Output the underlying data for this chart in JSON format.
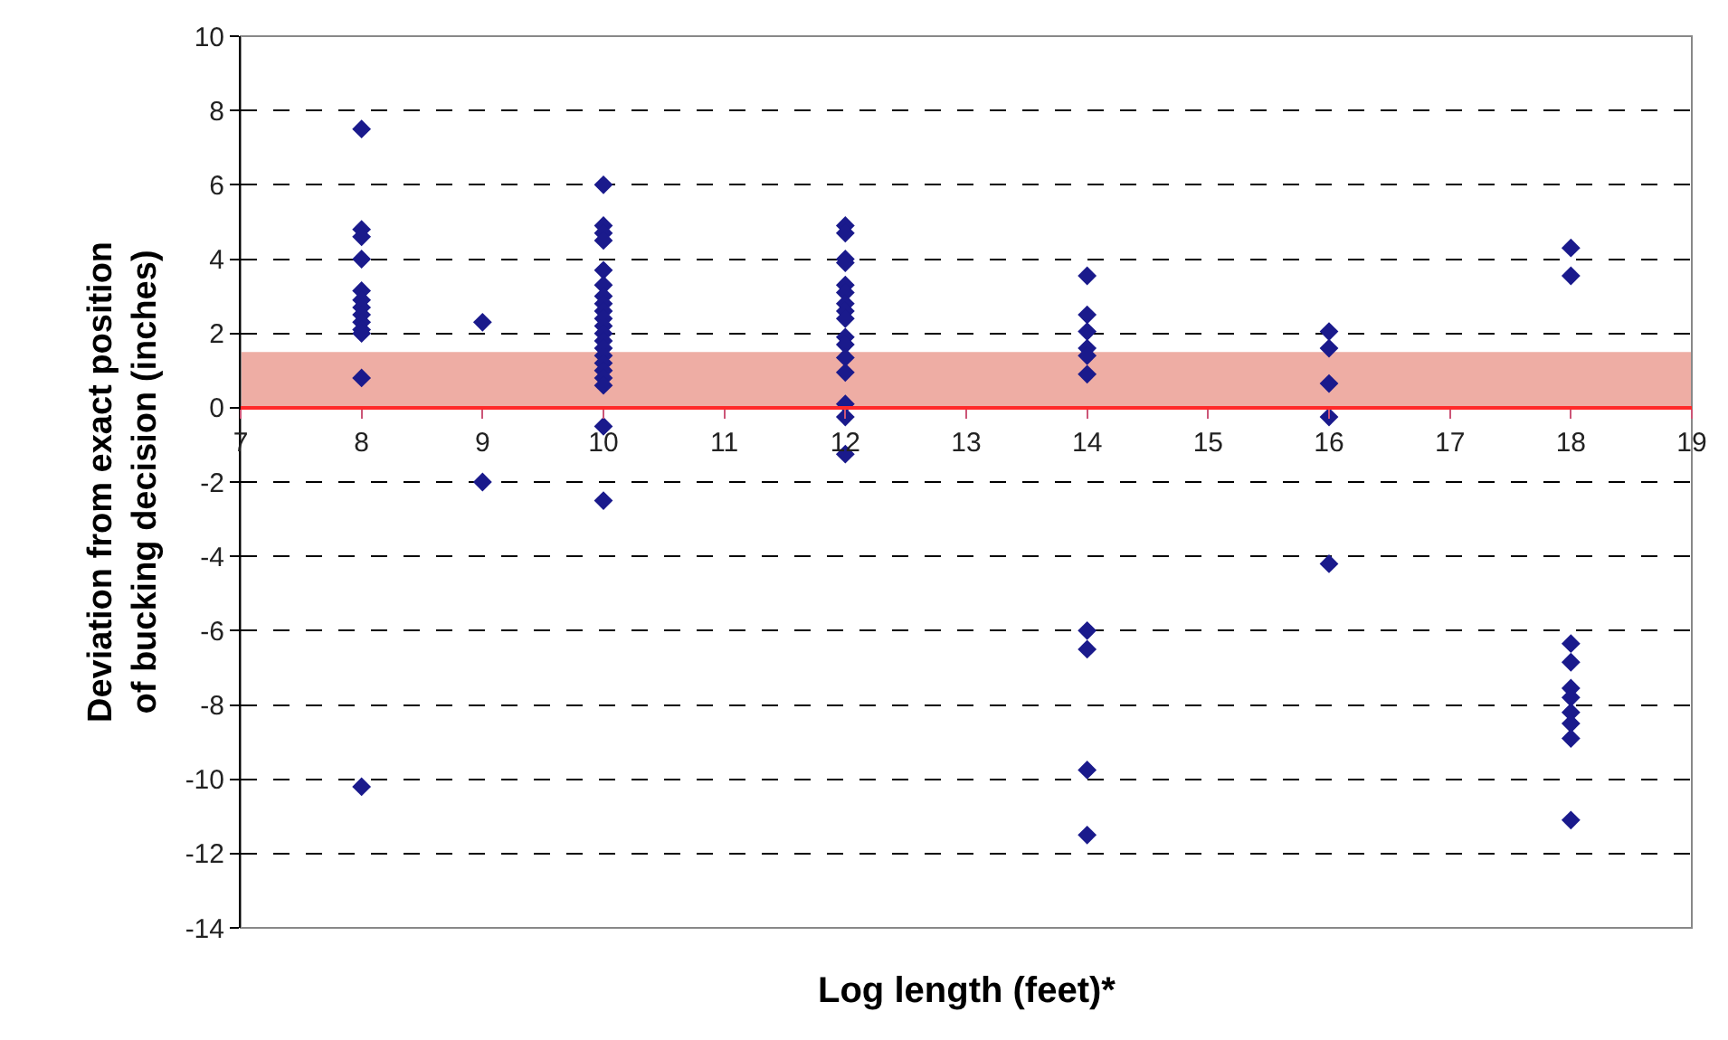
{
  "chart_data": {
    "type": "scatter",
    "xlabel": "Log length (feet)*",
    "ylabel": "Deviation from exact position of bucking decision (inches)",
    "xlim": [
      7,
      19
    ],
    "xticks": [
      7,
      8,
      9,
      10,
      11,
      12,
      13,
      14,
      15,
      16,
      17,
      18,
      19
    ],
    "ylim": [
      -14,
      10
    ],
    "yticks": [
      -14,
      -12,
      -10,
      -8,
      -6,
      -4,
      -2,
      0,
      2,
      4,
      6,
      8,
      10
    ],
    "grid": "y",
    "marker": "diamond",
    "bands": [
      {
        "axis": "y",
        "from": 0,
        "to": 1.5,
        "color": "#e06a5a"
      }
    ],
    "series": [
      {
        "color": "#1a1a8c",
        "x": [
          8,
          8,
          8,
          8,
          8,
          8,
          8,
          8,
          8,
          8,
          8,
          8,
          8,
          9,
          9,
          10,
          10,
          10,
          10,
          10,
          10,
          10,
          10,
          10,
          10,
          10,
          10,
          10,
          10,
          10,
          10,
          10,
          10,
          10,
          10,
          10,
          12,
          12,
          12,
          12,
          12,
          12,
          12,
          12,
          12,
          12,
          12,
          12,
          12,
          12,
          12,
          12,
          14,
          14,
          14,
          14,
          14,
          14,
          14,
          14,
          14,
          14,
          16,
          16,
          16,
          16,
          16,
          18,
          18,
          18,
          18,
          18,
          18,
          18,
          18,
          18,
          18
        ],
        "values": [
          7.5,
          4.8,
          4.6,
          4.0,
          3.15,
          2.9,
          2.7,
          2.5,
          2.3,
          2.1,
          2.0,
          0.8,
          -10.2,
          2.3,
          -2.0,
          6.0,
          4.9,
          4.7,
          4.5,
          3.7,
          3.3,
          3.0,
          2.8,
          2.6,
          2.4,
          2.2,
          2.0,
          1.8,
          1.6,
          1.4,
          1.2,
          1.0,
          0.8,
          0.6,
          -0.5,
          -2.5,
          4.9,
          4.7,
          4.0,
          3.9,
          3.3,
          3.1,
          2.8,
          2.6,
          2.4,
          1.9,
          1.7,
          1.35,
          0.95,
          0.1,
          -0.25,
          -1.25,
          3.55,
          2.5,
          2.05,
          1.6,
          1.4,
          0.9,
          -6.0,
          -6.5,
          -9.75,
          -11.5,
          2.05,
          1.6,
          0.65,
          -0.25,
          -4.2,
          4.3,
          3.55,
          -6.35,
          -6.85,
          -7.55,
          -7.8,
          -8.2,
          -8.5,
          -8.9,
          -11.1
        ]
      }
    ]
  }
}
